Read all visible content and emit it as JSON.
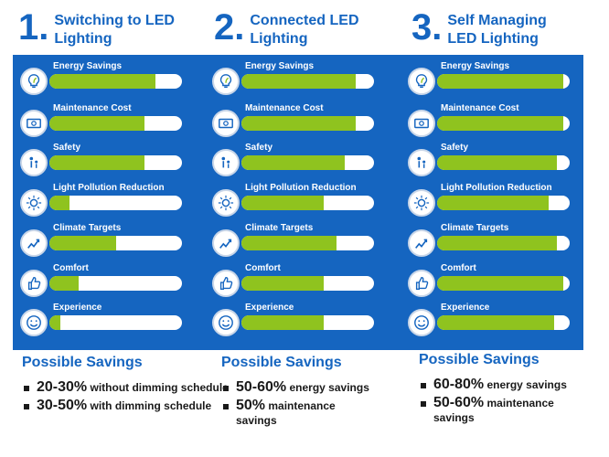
{
  "columns": [
    {
      "number": "1",
      "title_line1": "Switching to LED",
      "title_line2": "Lighting",
      "metrics": [
        {
          "label": "Energy Savings",
          "icon": "lightbulb-leaf-icon",
          "level": 0.8
        },
        {
          "label": "Maintenance Cost",
          "icon": "money-icon",
          "level": 0.72
        },
        {
          "label": "Safety",
          "icon": "people-icon",
          "level": 0.72
        },
        {
          "label": "Light Pollution Reduction",
          "icon": "bulb-rays-icon",
          "level": 0.15
        },
        {
          "label": "Climate Targets",
          "icon": "climate-icon",
          "level": 0.5
        },
        {
          "label": "Comfort",
          "icon": "thumbs-up-icon",
          "level": 0.22
        },
        {
          "label": "Experience",
          "icon": "smiley-icon",
          "level": 0.08
        }
      ],
      "savings_heading": "Possible Savings",
      "savings": [
        {
          "big": "20-30%",
          "rest": " without dimming schedule"
        },
        {
          "big": "30-50%",
          "rest": " with dimming schedule"
        }
      ]
    },
    {
      "number": "2",
      "title_line1": "Connected LED",
      "title_line2": "Lighting",
      "metrics": [
        {
          "label": "Energy Savings",
          "icon": "lightbulb-leaf-icon",
          "level": 0.86
        },
        {
          "label": "Maintenance Cost",
          "icon": "money-icon",
          "level": 0.86
        },
        {
          "label": "Safety",
          "icon": "people-icon",
          "level": 0.78
        },
        {
          "label": "Light Pollution Reduction",
          "icon": "bulb-rays-icon",
          "level": 0.62
        },
        {
          "label": "Climate Targets",
          "icon": "climate-icon",
          "level": 0.72
        },
        {
          "label": "Comfort",
          "icon": "thumbs-up-icon",
          "level": 0.62
        },
        {
          "label": "Experience",
          "icon": "smiley-icon",
          "level": 0.62
        }
      ],
      "savings_heading": "Possible Savings",
      "savings": [
        {
          "big": "50-60%",
          "rest": " energy savings"
        },
        {
          "big": "50%",
          "rest": " maintenance savings"
        }
      ]
    },
    {
      "number": "3",
      "title_line1": "Self Managing",
      "title_line2": "LED Lighting",
      "metrics": [
        {
          "label": "Energy Savings",
          "icon": "lightbulb-leaf-icon",
          "level": 0.95
        },
        {
          "label": "Maintenance Cost",
          "icon": "money-icon",
          "level": 0.95
        },
        {
          "label": "Safety",
          "icon": "people-icon",
          "level": 0.9
        },
        {
          "label": "Light Pollution Reduction",
          "icon": "bulb-rays-icon",
          "level": 0.84
        },
        {
          "label": "Climate Targets",
          "icon": "climate-icon",
          "level": 0.9
        },
        {
          "label": "Comfort",
          "icon": "thumbs-up-icon",
          "level": 0.95
        },
        {
          "label": "Experience",
          "icon": "smiley-icon",
          "level": 0.88
        }
      ],
      "savings_heading": "Possible Savings",
      "savings": [
        {
          "big": "60-80%",
          "rest": " energy savings"
        },
        {
          "big": "50-60%",
          "rest": " maintenance savings"
        }
      ]
    }
  ],
  "colors": {
    "brand_blue": "#1565c0",
    "bar_green": "#8fc31f",
    "track_white": "#ffffff"
  }
}
